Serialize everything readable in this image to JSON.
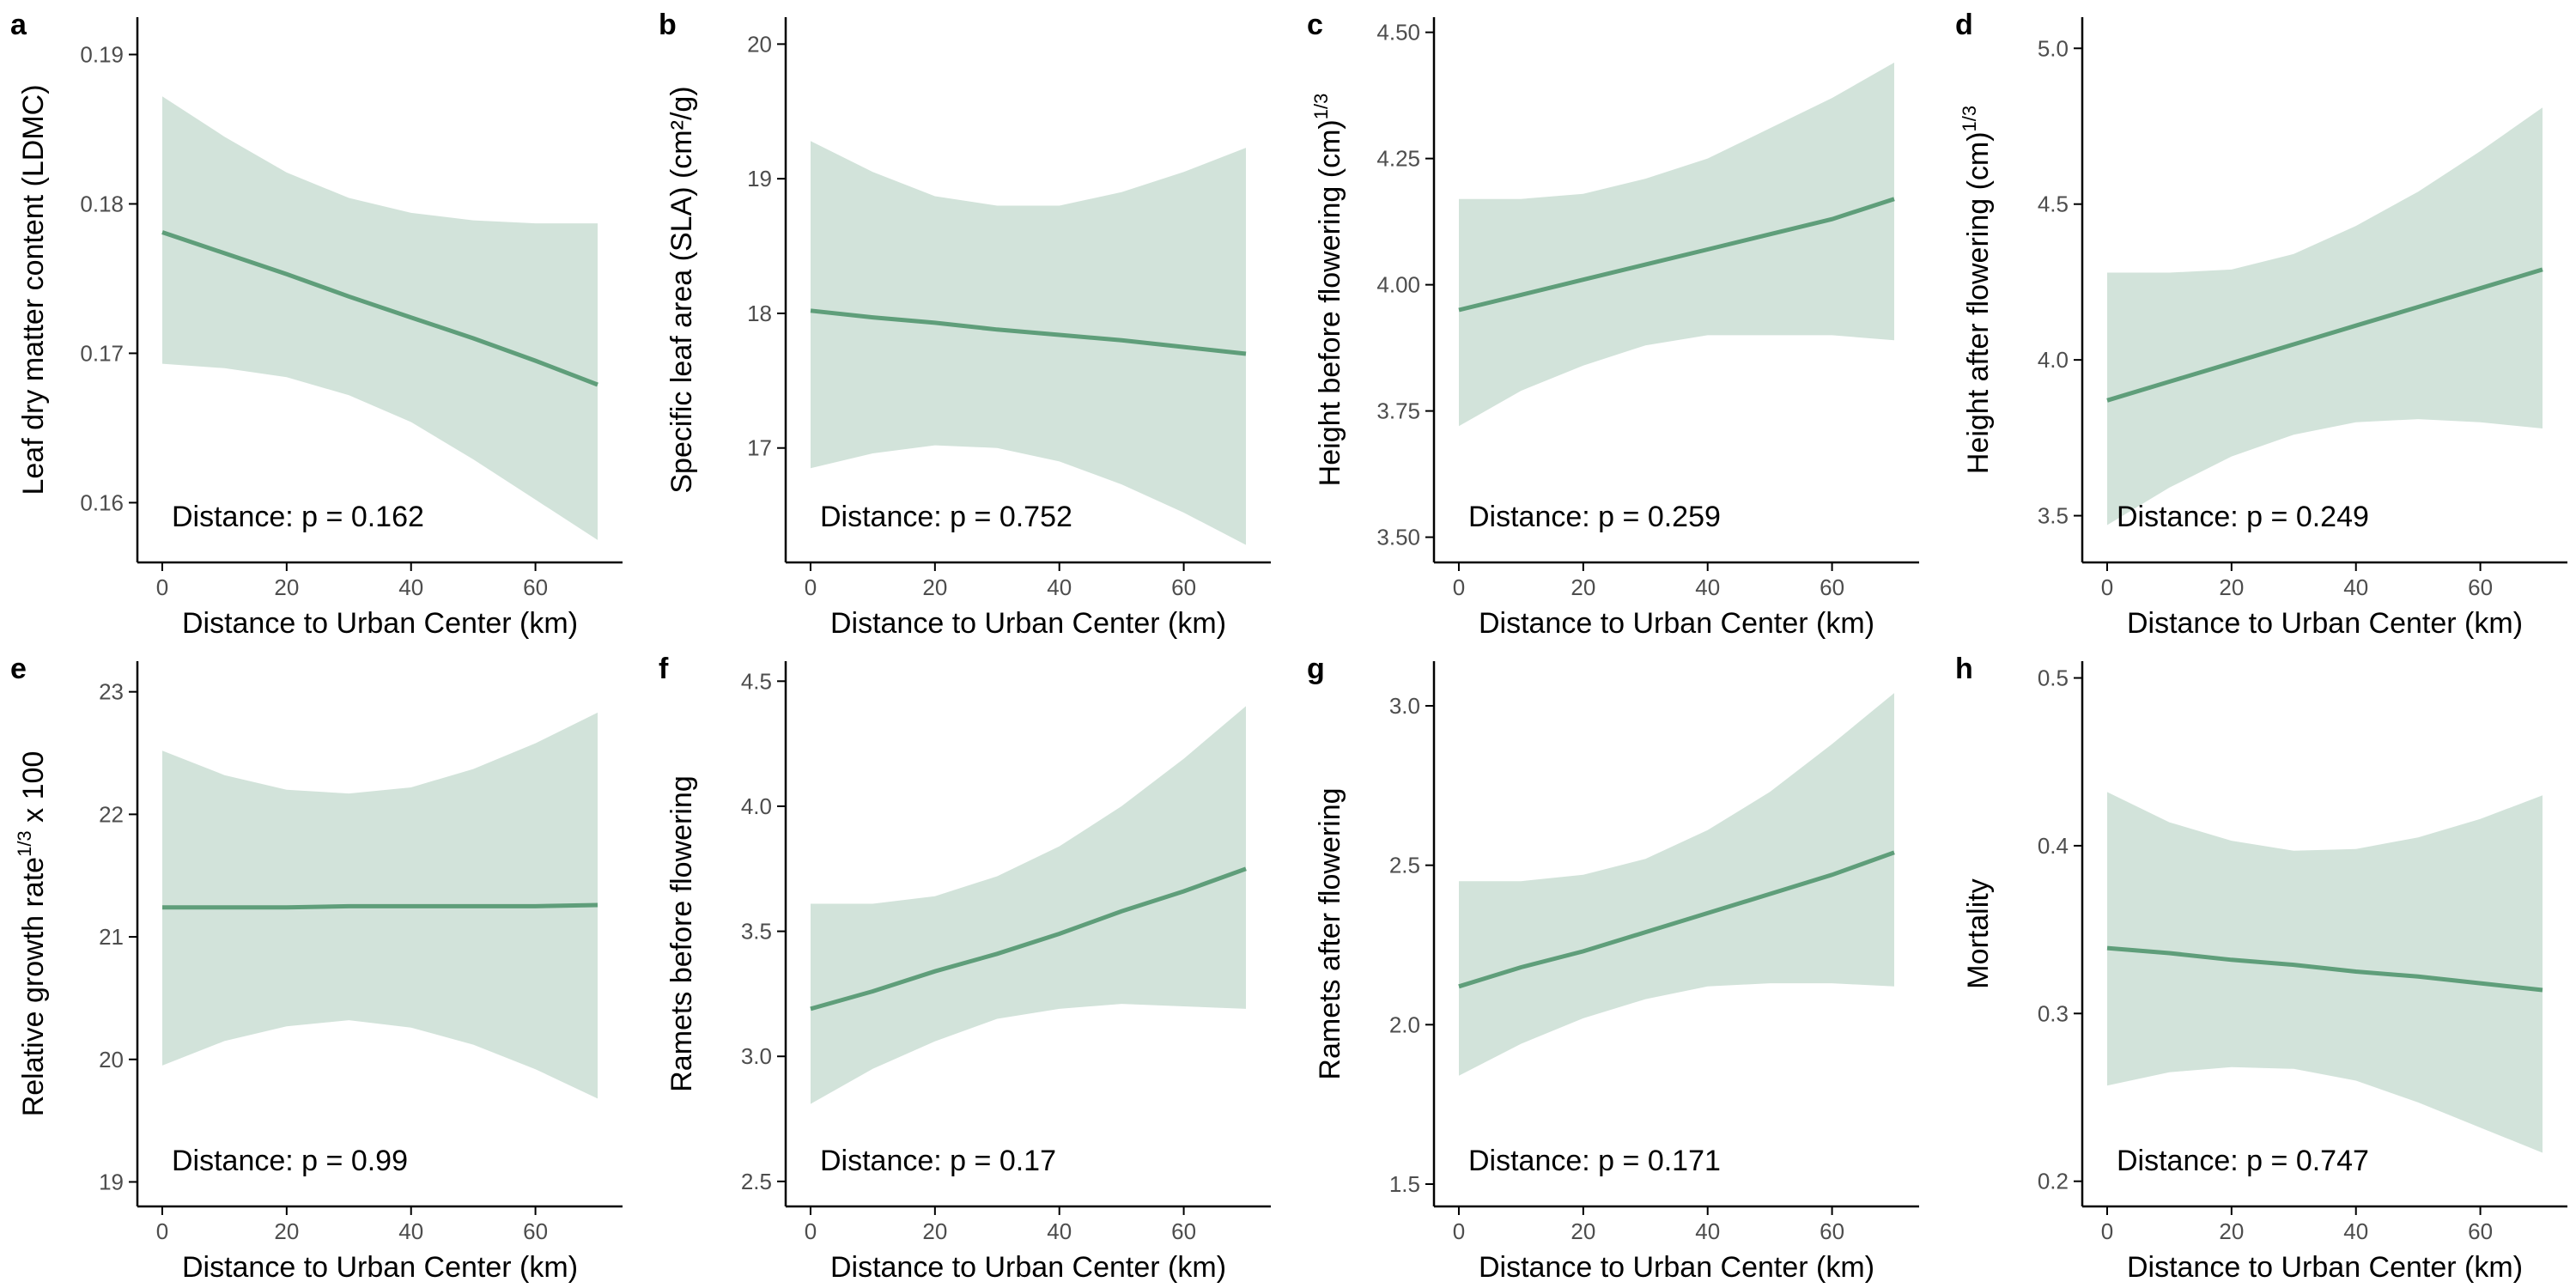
{
  "chart_data": [
    {
      "panel_label": "a",
      "type": "line",
      "xlabel": "Distance to Urban Center (km)",
      "ylabel": "Leaf dry matter content (LDMC)",
      "annotation": "Distance: p = 0.162",
      "xlim": [
        -4,
        74
      ],
      "ylim": [
        0.156,
        0.1925
      ],
      "xticks": [
        0,
        20,
        40,
        60
      ],
      "yticks": [
        0.16,
        0.17,
        0.18,
        0.19
      ],
      "ytick_labels": [
        "0.16",
        "0.17",
        "0.18",
        "0.19"
      ],
      "series": [
        {
          "x": [
            0,
            10,
            20,
            30,
            40,
            50,
            60,
            70
          ],
          "fit": [
            0.1781,
            0.1767,
            0.1753,
            0.1738,
            0.1724,
            0.171,
            0.1695,
            0.1679
          ],
          "lower": [
            0.1693,
            0.169,
            0.1684,
            0.1672,
            0.1654,
            0.1629,
            0.1602,
            0.1575
          ],
          "upper": [
            0.1872,
            0.1845,
            0.1821,
            0.1804,
            0.1794,
            0.1789,
            0.1787,
            0.1787
          ]
        }
      ]
    },
    {
      "panel_label": "b",
      "type": "line",
      "xlabel": "Distance to Urban Center (km)",
      "ylabel": "Specific leaf area (SLA) (cm²/g)",
      "annotation": "Distance: p = 0.752",
      "xlim": [
        -4,
        74
      ],
      "ylim": [
        16.15,
        20.2
      ],
      "xticks": [
        0,
        20,
        40,
        60
      ],
      "yticks": [
        17,
        18,
        19,
        20
      ],
      "ytick_labels": [
        "17",
        "18",
        "19",
        "20"
      ],
      "series": [
        {
          "x": [
            0,
            10,
            20,
            30,
            40,
            50,
            60,
            70
          ],
          "fit": [
            18.02,
            17.97,
            17.93,
            17.88,
            17.84,
            17.8,
            17.75,
            17.7
          ],
          "lower": [
            16.85,
            16.96,
            17.02,
            17.0,
            16.9,
            16.73,
            16.52,
            16.28
          ],
          "upper": [
            19.28,
            19.05,
            18.87,
            18.8,
            18.8,
            18.9,
            19.05,
            19.23
          ]
        }
      ]
    },
    {
      "panel_label": "c",
      "type": "line",
      "xlabel": "Distance to Urban Center (km)",
      "ylabel": "Height before flowering (cm)^1/3",
      "annotation": "Distance: p = 0.259",
      "xlim": [
        -4,
        74
      ],
      "ylim": [
        3.45,
        4.53
      ],
      "xticks": [
        0,
        20,
        40,
        60
      ],
      "yticks": [
        3.5,
        3.75,
        4.0,
        4.25,
        4.5
      ],
      "ytick_labels": [
        "3.50",
        "3.75",
        "4.00",
        "4.25",
        "4.50"
      ],
      "series": [
        {
          "x": [
            0,
            10,
            20,
            30,
            40,
            50,
            60,
            70
          ],
          "fit": [
            3.95,
            3.98,
            4.01,
            4.04,
            4.07,
            4.1,
            4.13,
            4.17
          ],
          "lower": [
            3.72,
            3.79,
            3.84,
            3.88,
            3.9,
            3.9,
            3.9,
            3.89
          ],
          "upper": [
            4.17,
            4.17,
            4.18,
            4.21,
            4.25,
            4.31,
            4.37,
            4.44
          ]
        }
      ]
    },
    {
      "panel_label": "d",
      "type": "line",
      "xlabel": "Distance to Urban Center (km)",
      "ylabel": "Height after flowering (cm)^1/3",
      "annotation": "Distance: p = 0.249",
      "xlim": [
        -4,
        74
      ],
      "ylim": [
        3.35,
        5.1
      ],
      "xticks": [
        0,
        20,
        40,
        60
      ],
      "yticks": [
        3.5,
        4.0,
        4.5,
        5.0
      ],
      "ytick_labels": [
        "3.5",
        "4.0",
        "4.5",
        "5.0"
      ],
      "series": [
        {
          "x": [
            0,
            10,
            20,
            30,
            40,
            50,
            60,
            70
          ],
          "fit": [
            3.87,
            3.93,
            3.99,
            4.05,
            4.11,
            4.17,
            4.23,
            4.29
          ],
          "lower": [
            3.47,
            3.59,
            3.69,
            3.76,
            3.8,
            3.81,
            3.8,
            3.78
          ],
          "upper": [
            4.28,
            4.28,
            4.29,
            4.34,
            4.43,
            4.54,
            4.67,
            4.81
          ]
        }
      ]
    },
    {
      "panel_label": "e",
      "type": "line",
      "xlabel": "Distance to Urban Center (km)",
      "ylabel": "Relative growth rate^1/3 x 100",
      "annotation": "Distance: p = 0.99",
      "xlim": [
        -4,
        74
      ],
      "ylim": [
        18.8,
        23.25
      ],
      "xticks": [
        0,
        20,
        40,
        60
      ],
      "yticks": [
        19,
        20,
        21,
        22,
        23
      ],
      "ytick_labels": [
        "19",
        "20",
        "21",
        "22",
        "23"
      ],
      "series": [
        {
          "x": [
            0,
            10,
            20,
            30,
            40,
            50,
            60,
            70
          ],
          "fit": [
            21.24,
            21.24,
            21.24,
            21.25,
            21.25,
            21.25,
            21.25,
            21.26
          ],
          "lower": [
            19.95,
            20.15,
            20.27,
            20.32,
            20.26,
            20.12,
            19.92,
            19.68
          ],
          "upper": [
            22.52,
            22.32,
            22.2,
            22.17,
            22.22,
            22.37,
            22.58,
            22.83
          ]
        }
      ]
    },
    {
      "panel_label": "f",
      "type": "line",
      "xlabel": "Distance to Urban Center (km)",
      "ylabel": "Ramets before flowering",
      "annotation": "Distance: p = 0.17",
      "xlim": [
        -4,
        74
      ],
      "ylim": [
        2.4,
        4.58
      ],
      "xticks": [
        0,
        20,
        40,
        60
      ],
      "yticks": [
        2.5,
        3.0,
        3.5,
        4.0,
        4.5
      ],
      "ytick_labels": [
        "2.5",
        "3.0",
        "3.5",
        "4.0",
        "4.5"
      ],
      "series": [
        {
          "x": [
            0,
            10,
            20,
            30,
            40,
            50,
            60,
            70
          ],
          "fit": [
            3.19,
            3.26,
            3.34,
            3.41,
            3.49,
            3.58,
            3.66,
            3.75
          ],
          "lower": [
            2.81,
            2.95,
            3.06,
            3.15,
            3.19,
            3.21,
            3.2,
            3.19
          ],
          "upper": [
            3.61,
            3.61,
            3.64,
            3.72,
            3.84,
            4.0,
            4.19,
            4.4
          ]
        }
      ]
    },
    {
      "panel_label": "g",
      "type": "line",
      "xlabel": "Distance to Urban Center (km)",
      "ylabel": "Ramets after flowering",
      "annotation": "Distance: p = 0.171",
      "xlim": [
        -4,
        74
      ],
      "ylim": [
        1.43,
        3.14
      ],
      "xticks": [
        0,
        20,
        40,
        60
      ],
      "yticks": [
        1.5,
        2.0,
        2.5,
        3.0
      ],
      "ytick_labels": [
        "1.5",
        "2.0",
        "2.5",
        "3.0"
      ],
      "series": [
        {
          "x": [
            0,
            10,
            20,
            30,
            40,
            50,
            60,
            70
          ],
          "fit": [
            2.12,
            2.18,
            2.23,
            2.29,
            2.35,
            2.41,
            2.47,
            2.54
          ],
          "lower": [
            1.84,
            1.94,
            2.02,
            2.08,
            2.12,
            2.13,
            2.13,
            2.12
          ],
          "upper": [
            2.45,
            2.45,
            2.47,
            2.52,
            2.61,
            2.73,
            2.88,
            3.04
          ]
        }
      ]
    },
    {
      "panel_label": "h",
      "type": "line",
      "xlabel": "Distance to Urban Center (km)",
      "ylabel": "Mortality",
      "annotation": "Distance: p = 0.747",
      "xlim": [
        -4,
        74
      ],
      "ylim": [
        0.185,
        0.51
      ],
      "xticks": [
        0,
        20,
        40,
        60
      ],
      "yticks": [
        0.2,
        0.3,
        0.4,
        0.5
      ],
      "ytick_labels": [
        "0.2",
        "0.3",
        "0.4",
        "0.5"
      ],
      "series": [
        {
          "x": [
            0,
            10,
            20,
            30,
            40,
            50,
            60,
            70
          ],
          "fit": [
            0.339,
            0.336,
            0.332,
            0.329,
            0.325,
            0.322,
            0.318,
            0.314
          ],
          "lower": [
            0.257,
            0.265,
            0.268,
            0.267,
            0.26,
            0.247,
            0.232,
            0.217
          ],
          "upper": [
            0.432,
            0.414,
            0.403,
            0.397,
            0.398,
            0.405,
            0.416,
            0.43
          ]
        }
      ]
    }
  ],
  "colors": {
    "line": "#5f9e7a",
    "ribbon": "#d2e3da",
    "axis": "#000000",
    "tick_label": "#4d4d4d"
  }
}
